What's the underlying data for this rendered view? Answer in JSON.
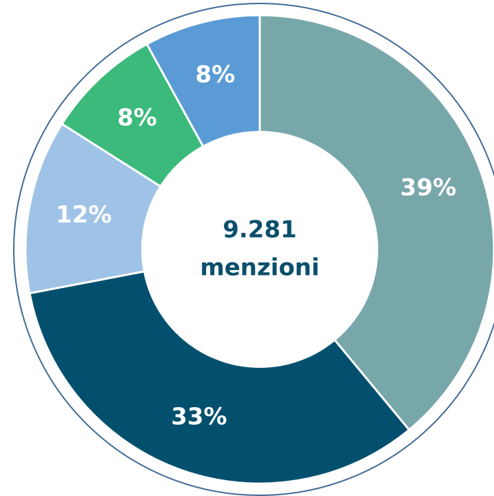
{
  "chart_data": {
    "type": "donut",
    "values": [
      39,
      33,
      12,
      8,
      8
    ],
    "value_labels": [
      "39%",
      "33%",
      "12%",
      "8%",
      "8%"
    ],
    "colors": [
      "#78a7aa",
      "#03506e",
      "#9fc3e6",
      "#3bba7c",
      "#5b9bd5"
    ],
    "center_label": [
      "9.281",
      "menzioni"
    ]
  }
}
